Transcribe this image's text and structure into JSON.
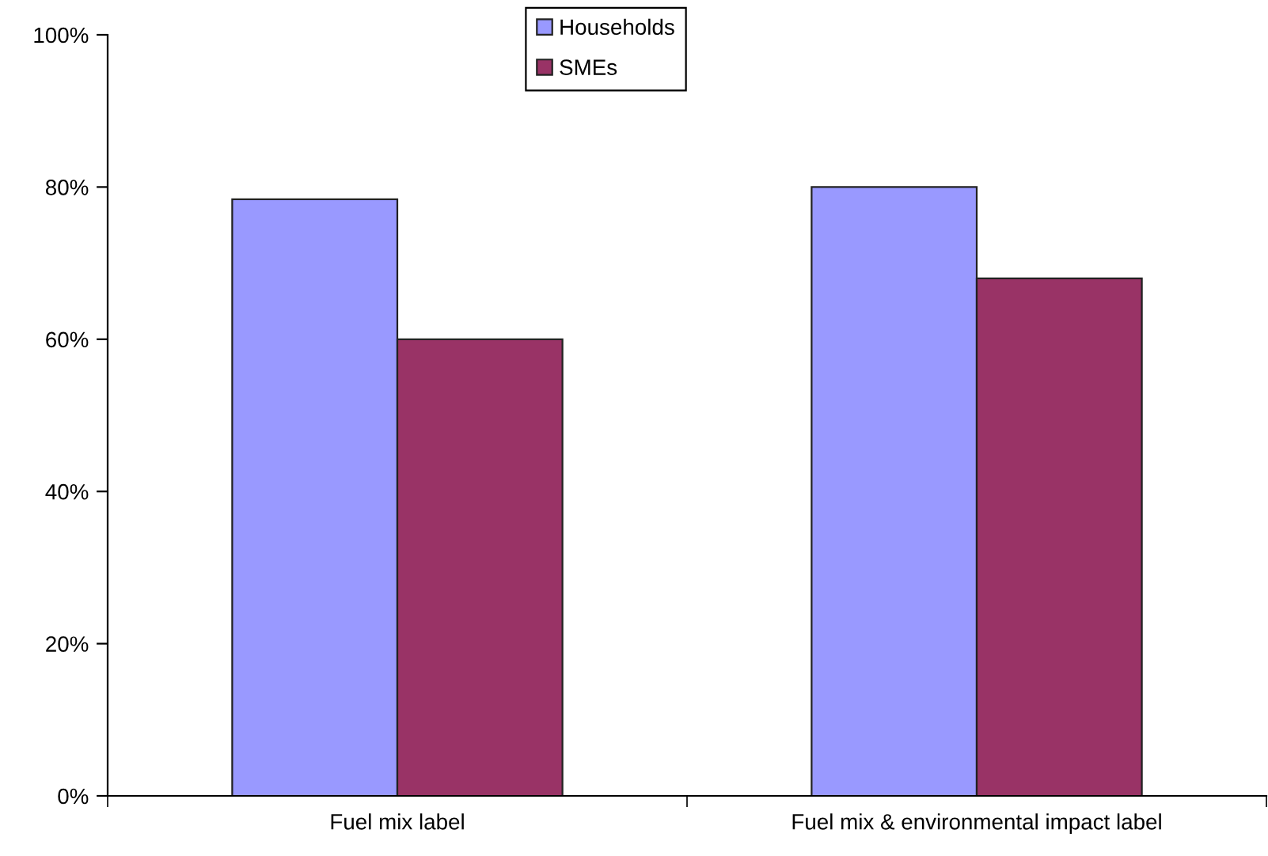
{
  "chart_data": {
    "type": "bar",
    "categories": [
      "Fuel mix label",
      "Fuel mix & environmental impact label"
    ],
    "series": [
      {
        "name": "Households",
        "color": "#9999ff",
        "values": [
          78.4,
          80
        ]
      },
      {
        "name": "SMEs",
        "color": "#993366",
        "values": [
          60,
          68
        ]
      }
    ],
    "ylim": [
      0,
      100
    ],
    "yticks": [
      {
        "value": 0,
        "label": "0%"
      },
      {
        "value": 20,
        "label": "20%"
      },
      {
        "value": 40,
        "label": "40%"
      },
      {
        "value": 60,
        "label": "60%"
      },
      {
        "value": 80,
        "label": "80%"
      },
      {
        "value": 100,
        "label": "100%"
      }
    ],
    "grid": false,
    "legend": "top"
  }
}
